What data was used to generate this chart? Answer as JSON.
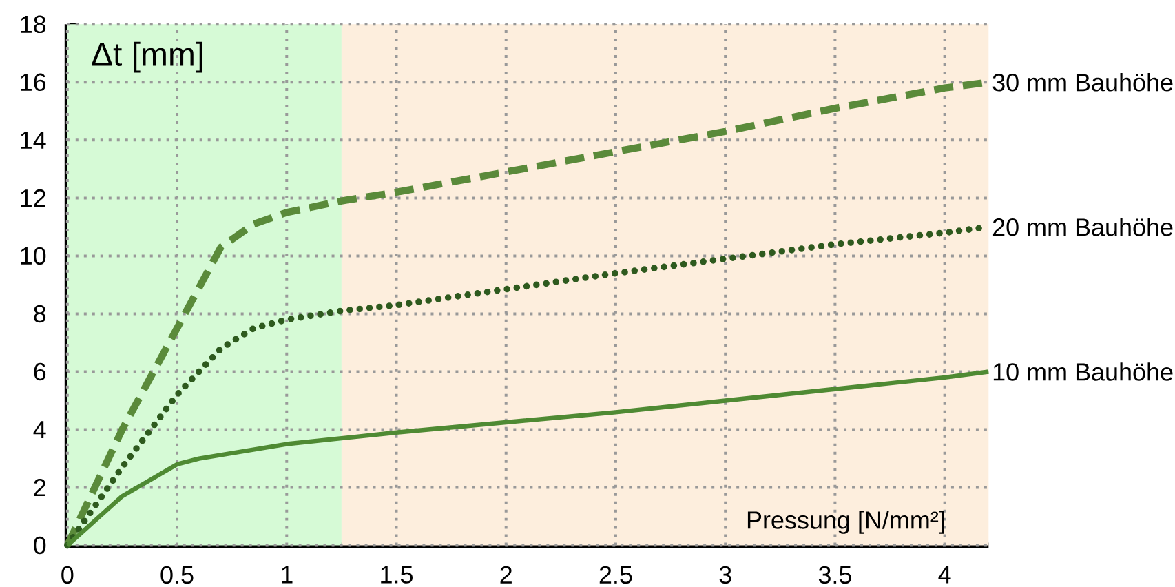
{
  "chart_data": {
    "type": "line",
    "xlabel": "Pressung [N/mm²]",
    "ylabel": "Δt [mm]",
    "xlim": [
      0,
      4.2
    ],
    "ylim": [
      0,
      18
    ],
    "xticks": [
      0,
      0.5,
      1,
      1.5,
      2,
      2.5,
      3,
      3.5,
      4
    ],
    "yticks": [
      0,
      2,
      4,
      6,
      8,
      10,
      12,
      14,
      16,
      18
    ],
    "grid": true,
    "legend": false,
    "marker": "none",
    "bands": [
      {
        "axis": "x",
        "from": 0,
        "to": 1.25,
        "color": "#d6fad6"
      },
      {
        "axis": "x",
        "from": 1.25,
        "to": 4.2,
        "color": "#fdeedd"
      }
    ],
    "series": [
      {
        "name": "30 mm Bauhöhe",
        "color": "#5a8a3a",
        "line_style": "dashed",
        "x": [
          0,
          0.25,
          0.5,
          0.7,
          0.85,
          1,
          1.25,
          1.5,
          2,
          2.5,
          3,
          3.5,
          4,
          4.2
        ],
        "values": [
          0,
          4,
          7.5,
          10.3,
          11.1,
          11.5,
          11.9,
          12.2,
          12.9,
          13.6,
          14.3,
          15.1,
          15.8,
          16
        ]
      },
      {
        "name": "20 mm Bauhöhe",
        "color": "#2e5a1e",
        "line_style": "dotted",
        "x": [
          0,
          0.25,
          0.5,
          0.7,
          0.85,
          1,
          1.25,
          1.5,
          2,
          2.5,
          3,
          3.5,
          4,
          4.2
        ],
        "values": [
          0,
          2.7,
          5.2,
          6.8,
          7.5,
          7.8,
          8.1,
          8.3,
          8.85,
          9.4,
          9.9,
          10.4,
          10.8,
          11
        ]
      },
      {
        "name": "10 mm Bauhöhe",
        "color": "#4f8a33",
        "line_style": "solid",
        "x": [
          0,
          0.25,
          0.5,
          0.6,
          1,
          1.5,
          2,
          2.5,
          3,
          3.5,
          4,
          4.2
        ],
        "values": [
          0,
          1.7,
          2.8,
          3.0,
          3.5,
          3.9,
          4.25,
          4.6,
          5.0,
          5.4,
          5.8,
          6
        ]
      }
    ]
  }
}
